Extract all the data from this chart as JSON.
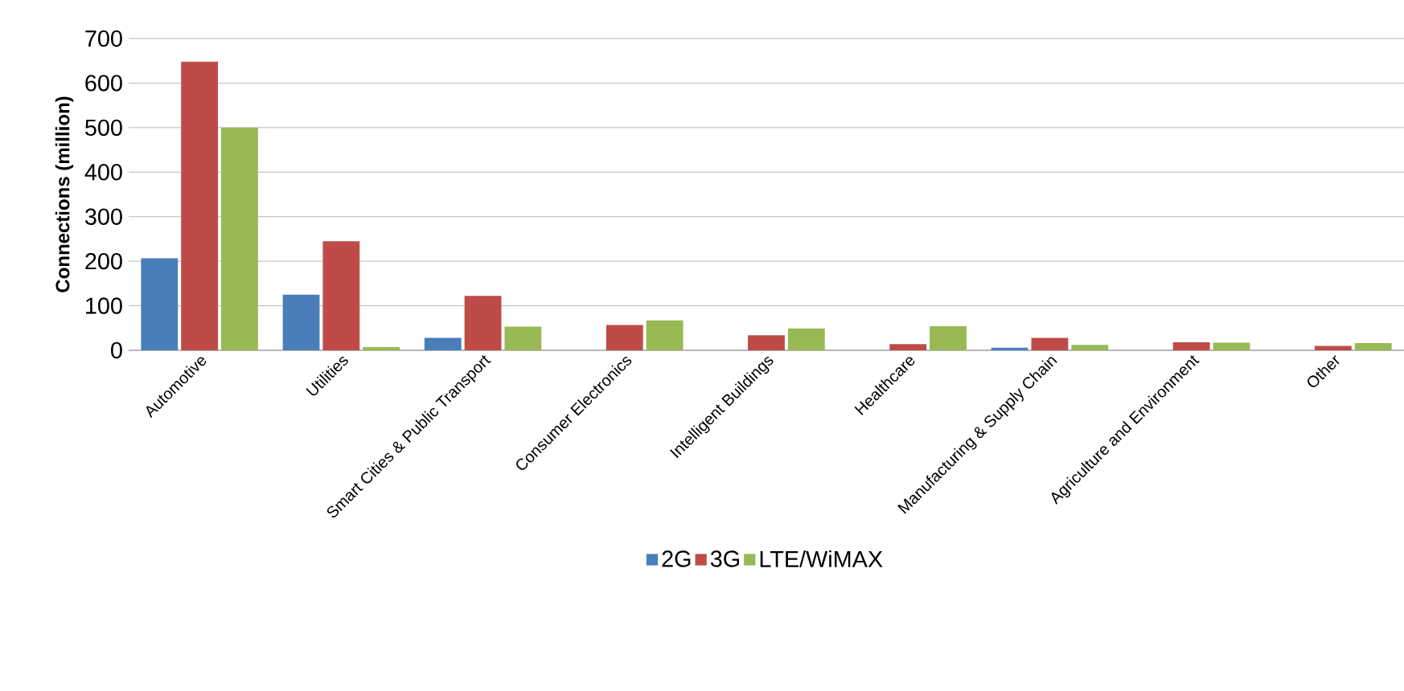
{
  "chart_data": {
    "type": "bar",
    "ylabel": "Connections (million)",
    "categories": [
      "Automotive",
      "Utilities",
      "Smart Cities & Public Transport",
      "Consumer Electronics",
      "Intelligent Buildings",
      "Healthcare",
      "Manufacturing & Supply Chain",
      "Agriculture and Environment",
      "Other"
    ],
    "series": [
      {
        "name": "2G",
        "color": "#4a7ebb",
        "values": [
          207,
          125,
          28,
          0,
          0,
          null,
          6,
          null,
          null
        ]
      },
      {
        "name": "3G",
        "color": "#be4b48",
        "values": [
          648,
          245,
          122,
          57,
          34,
          14,
          28,
          18,
          10
        ]
      },
      {
        "name": "LTE/WiMAX",
        "color": "#98b954",
        "values": [
          500,
          7,
          53,
          67,
          49,
          54,
          12,
          17,
          16
        ]
      }
    ],
    "ylim": [
      0,
      700
    ],
    "yticks": [
      0,
      100,
      200,
      300,
      400,
      500,
      600,
      700
    ],
    "grid": "y",
    "legend": "bottom"
  }
}
